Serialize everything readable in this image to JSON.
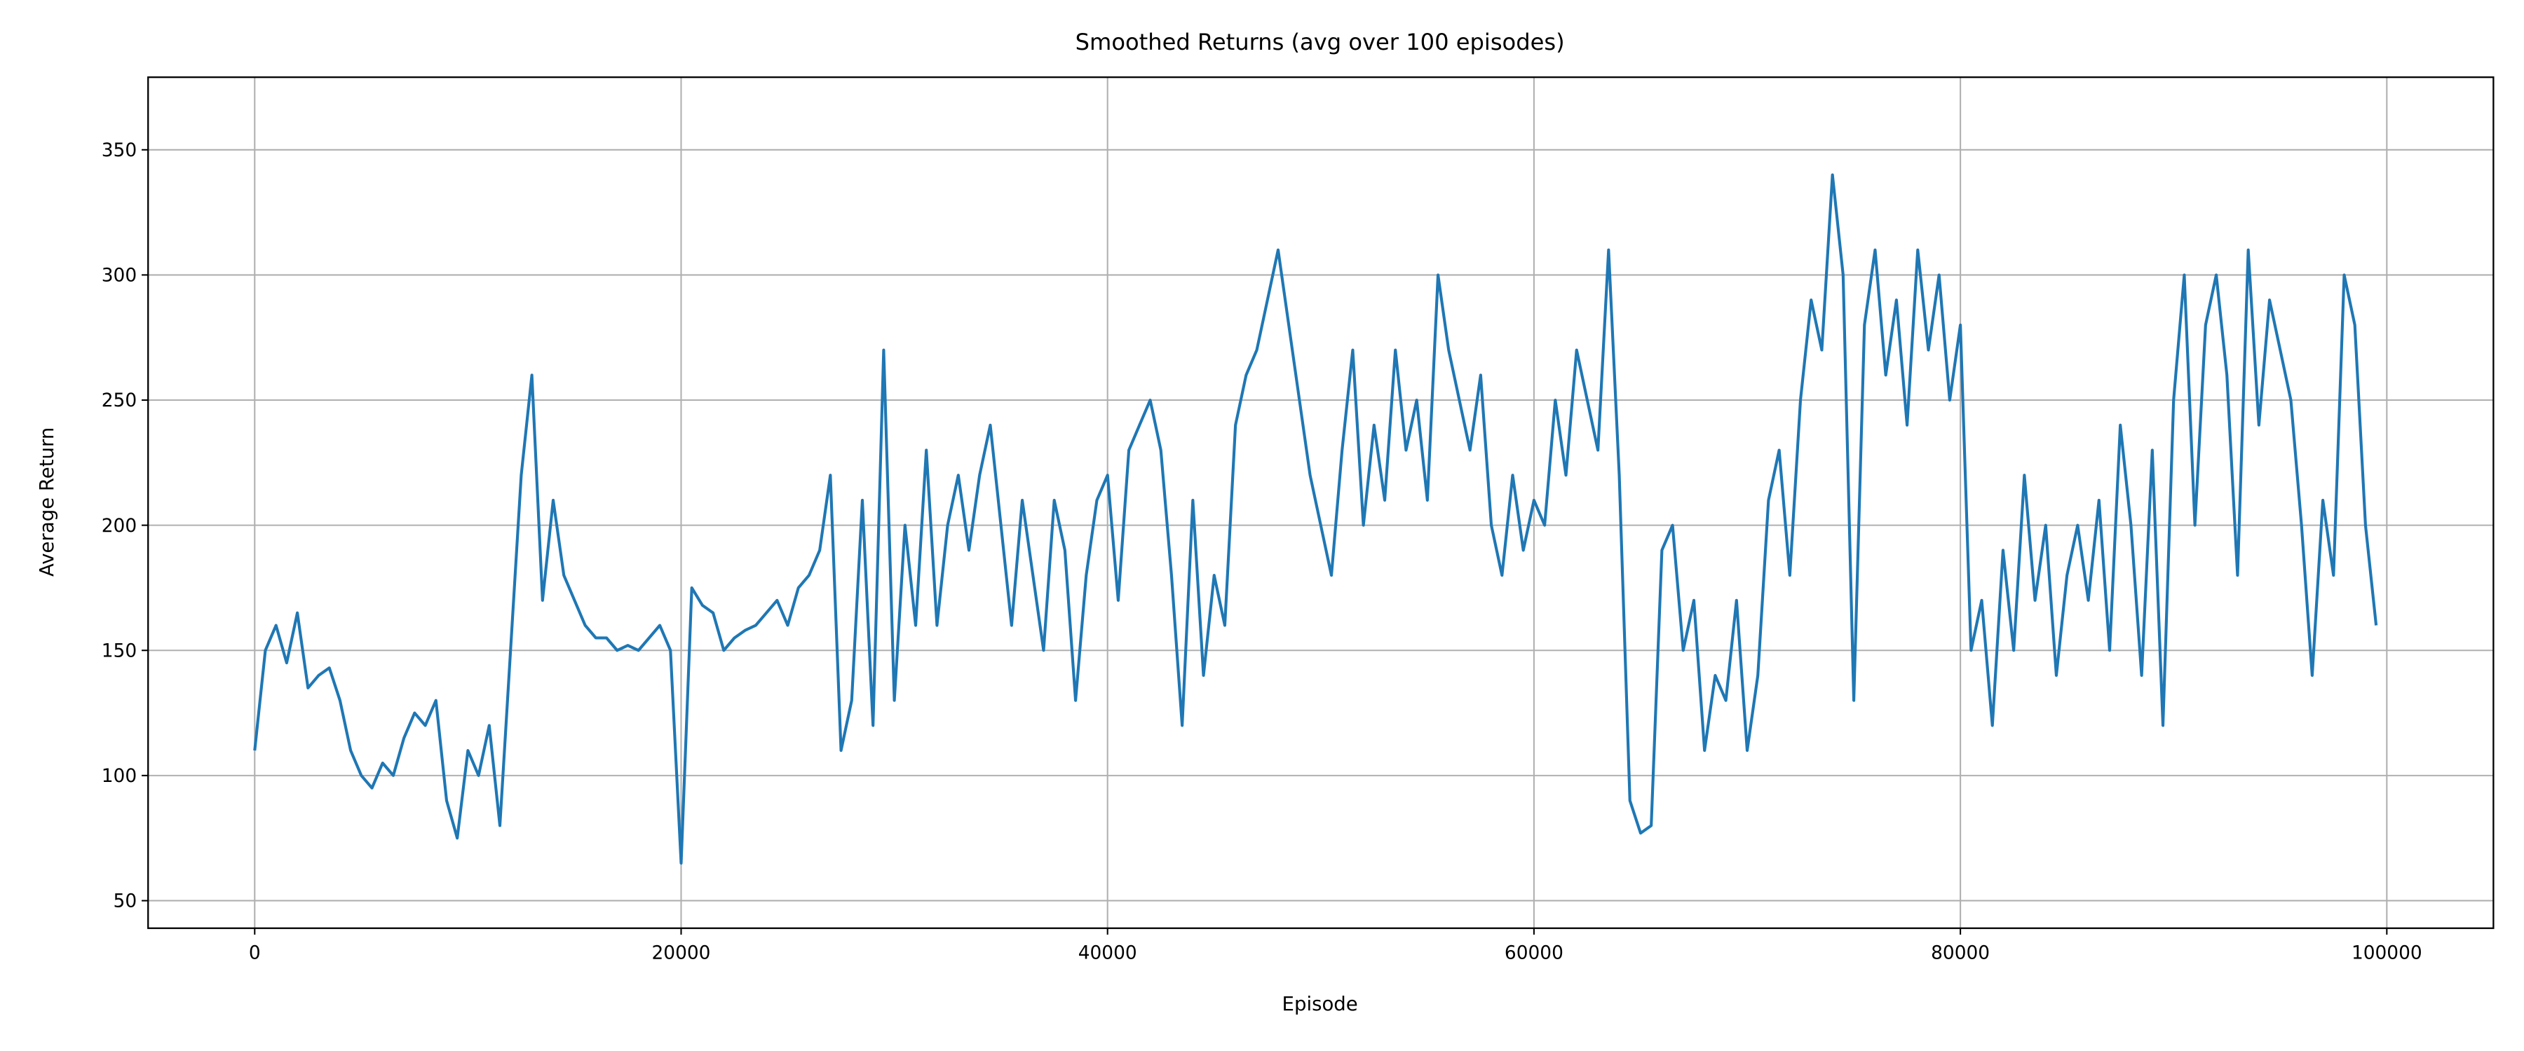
{
  "chart_data": {
    "type": "line",
    "title": "Smoothed Returns (avg over 100 episodes)",
    "xlabel": "Episode",
    "ylabel": "Average Return",
    "x": [
      0,
      500,
      1000,
      1500,
      2000,
      2500,
      3000,
      3500,
      4000,
      4500,
      5000,
      5500,
      6000,
      6500,
      7000,
      7500,
      8000,
      8500,
      9000,
      9500,
      10000,
      10500,
      11000,
      11500,
      12000,
      12500,
      13000,
      13500,
      14000,
      14500,
      15000,
      15500,
      16000,
      16500,
      17000,
      17500,
      18000,
      18500,
      19000,
      19500,
      20000,
      20500,
      21000,
      21500,
      22000,
      22500,
      23000,
      23500,
      24000,
      24500,
      25000,
      25500,
      26000,
      26500,
      27000,
      27500,
      28000,
      28500,
      29000,
      29500,
      30000,
      30500,
      31000,
      31500,
      32000,
      32500,
      33000,
      33500,
      34000,
      34500,
      35000,
      35500,
      36000,
      36500,
      37000,
      37500,
      38000,
      38500,
      39000,
      39500,
      40000,
      40500,
      41000,
      41500,
      42000,
      42500,
      43000,
      43500,
      44000,
      44500,
      45000,
      45500,
      46000,
      46500,
      47000,
      47500,
      48000,
      48500,
      49000,
      49500,
      50000,
      50500,
      51000,
      51500,
      52000,
      52500,
      53000,
      53500,
      54000,
      54500,
      55000,
      55500,
      56000,
      56500,
      57000,
      57500,
      58000,
      58500,
      59000,
      59500,
      60000,
      60500,
      61000,
      61500,
      62000,
      62500,
      63000,
      63500,
      64000,
      64500,
      65000,
      65500,
      66000,
      66500,
      67000,
      67500,
      68000,
      68500,
      69000,
      69500,
      70000,
      70500,
      71000,
      71500,
      72000,
      72500,
      73000,
      73500,
      74000,
      74500,
      75000,
      75500,
      76000,
      76500,
      77000,
      77500,
      78000,
      78500,
      79000,
      79500,
      80000,
      80500,
      81000,
      81500,
      82000,
      82500,
      83000,
      83500,
      84000,
      84500,
      85000,
      85500,
      86000,
      86500,
      87000,
      87500,
      88000,
      88500,
      89000,
      89500,
      90000,
      90500,
      91000,
      91500,
      92000,
      92500,
      93000,
      93500,
      94000,
      94500,
      95000,
      95500,
      96000,
      96500,
      97000,
      97500,
      98000,
      98500,
      99000,
      99500
    ],
    "series": [
      {
        "color": "#1f77b4",
        "values": [
          110,
          150,
          160,
          145,
          165,
          135,
          140,
          143,
          130,
          110,
          100,
          95,
          105,
          100,
          115,
          125,
          120,
          130,
          90,
          75,
          110,
          100,
          120,
          80,
          150,
          220,
          260,
          170,
          210,
          180,
          170,
          160,
          155,
          155,
          150,
          152,
          150,
          155,
          160,
          150,
          65,
          175,
          168,
          165,
          150,
          155,
          158,
          160,
          165,
          170,
          160,
          175,
          180,
          190,
          220,
          110,
          130,
          210,
          120,
          270,
          130,
          200,
          160,
          230,
          160,
          200,
          220,
          190,
          220,
          240,
          200,
          160,
          210,
          180,
          150,
          210,
          190,
          130,
          180,
          210,
          220,
          170,
          230,
          240,
          250,
          230,
          180,
          120,
          210,
          140,
          180,
          160,
          240,
          260,
          270,
          290,
          310,
          280,
          250,
          220,
          200,
          180,
          230,
          270,
          200,
          240,
          210,
          270,
          230,
          250,
          210,
          300,
          270,
          250,
          230,
          260,
          200,
          180,
          220,
          190,
          210,
          200,
          250,
          220,
          270,
          250,
          230,
          310,
          220,
          90,
          77,
          80,
          190,
          200,
          150,
          170,
          110,
          140,
          130,
          170,
          110,
          140,
          210,
          230,
          180,
          250,
          290,
          270,
          340,
          300,
          130,
          280,
          310,
          260,
          290,
          240,
          310,
          270,
          300,
          250,
          280,
          150,
          170,
          120,
          190,
          150,
          220,
          170,
          200,
          140,
          180,
          200,
          170,
          210,
          150,
          240,
          200,
          140,
          230,
          120,
          250,
          300,
          200,
          280,
          300,
          260,
          180,
          310,
          240,
          290,
          270,
          250,
          200,
          140,
          210,
          180,
          300,
          280,
          200,
          160
        ]
      }
    ],
    "xlim": [
      -5000,
      105000
    ],
    "xticks": [
      0,
      20000,
      40000,
      60000,
      80000,
      100000
    ],
    "ylim": [
      39,
      379
    ],
    "yticks": [
      50,
      100,
      150,
      200,
      250,
      300,
      350
    ],
    "grid": true
  }
}
